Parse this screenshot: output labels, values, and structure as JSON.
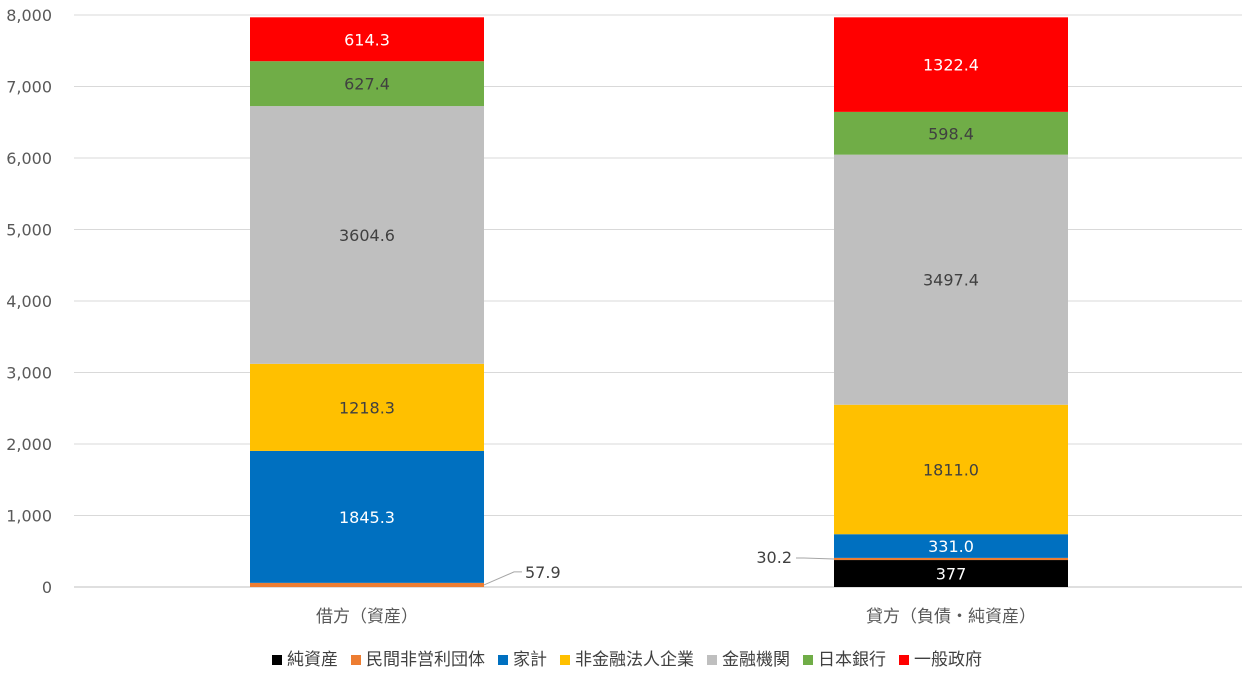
{
  "chart_data": {
    "type": "bar",
    "stacked": true,
    "categories": [
      "借方（資産）",
      "貸方（負債・純資産）"
    ],
    "ylim": [
      0,
      8000
    ],
    "yticks": [
      "0",
      "1,000",
      "2,000",
      "3,000",
      "4,000",
      "5,000",
      "6,000",
      "7,000",
      "8,000"
    ],
    "grid": true,
    "legend_position": "bottom",
    "series": [
      {
        "name": "純資産",
        "color": "#000000",
        "label_color": "#ffffff",
        "values": [
          0,
          377
        ],
        "labels": [
          "",
          "377"
        ]
      },
      {
        "name": "民間非営利団体",
        "color": "#ED7D31",
        "label_color": "#404040",
        "values": [
          57.9,
          30.2
        ],
        "labels": [
          "57.9",
          "30.2"
        ],
        "callout": true
      },
      {
        "name": "家計",
        "color": "#0070C0",
        "label_color": "#ffffff",
        "values": [
          1845.3,
          331.0
        ],
        "labels": [
          "1845.3",
          "331.0"
        ]
      },
      {
        "name": "非金融法人企業",
        "color": "#FFC000",
        "label_color": "#404040",
        "values": [
          1218.3,
          1811.0
        ],
        "labels": [
          "1218.3",
          "1811.0"
        ]
      },
      {
        "name": "金融機関",
        "color": "#BFBFBF",
        "label_color": "#404040",
        "values": [
          3604.6,
          3497.4
        ],
        "labels": [
          "3604.6",
          "3497.4"
        ]
      },
      {
        "name": "日本銀行",
        "color": "#70AD47",
        "label_color": "#404040",
        "values": [
          627.4,
          598.4
        ],
        "labels": [
          "627.4",
          "598.4"
        ]
      },
      {
        "name": "一般政府",
        "color": "#FF0000",
        "label_color": "#ffffff",
        "values": [
          614.3,
          1322.4
        ],
        "labels": [
          "614.3",
          "1322.4"
        ]
      }
    ]
  }
}
